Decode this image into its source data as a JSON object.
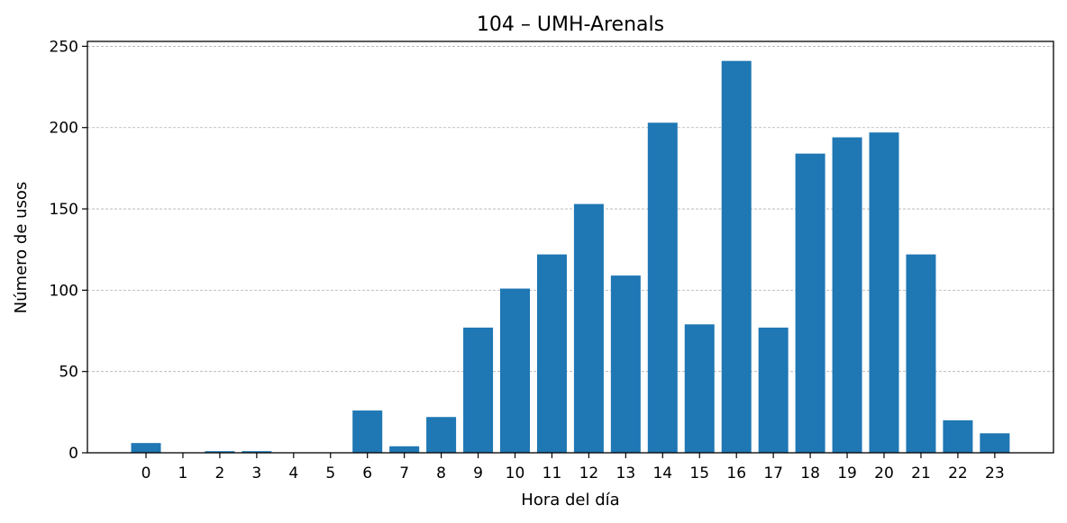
{
  "chart_data": {
    "type": "bar",
    "title": "104 – UMH-Arenals",
    "xlabel": "Hora del día",
    "ylabel": "Número de usos",
    "categories": [
      "0",
      "1",
      "2",
      "3",
      "4",
      "5",
      "6",
      "7",
      "8",
      "9",
      "10",
      "11",
      "12",
      "13",
      "14",
      "15",
      "16",
      "17",
      "18",
      "19",
      "20",
      "21",
      "22",
      "23"
    ],
    "values": [
      6,
      0,
      1,
      1,
      0,
      0,
      26,
      4,
      22,
      77,
      101,
      122,
      153,
      109,
      203,
      79,
      241,
      77,
      184,
      194,
      197,
      122,
      20,
      12
    ],
    "ylim": [
      0,
      253
    ],
    "yticks": [
      0,
      50,
      100,
      150,
      200,
      250
    ],
    "grid": "y-dashed",
    "legend": "none",
    "bar_color": "#1f77b4"
  }
}
